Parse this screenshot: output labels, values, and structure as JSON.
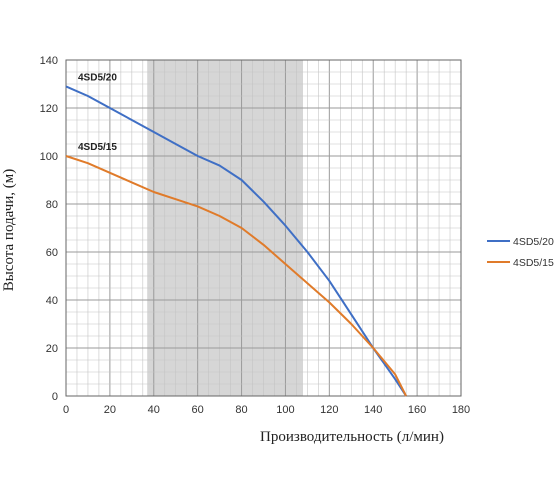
{
  "chart_data": {
    "type": "line",
    "xlabel": "Производительность (л/мин)",
    "ylabel": "Высота подачи, (м)",
    "xlim": [
      0,
      180
    ],
    "ylim": [
      0,
      140
    ],
    "x_ticks": [
      0,
      20,
      40,
      60,
      80,
      100,
      120,
      140,
      160,
      180
    ],
    "y_ticks": [
      0,
      20,
      40,
      60,
      80,
      100,
      120,
      140
    ],
    "grid": true,
    "shaded_region": [
      37,
      108
    ],
    "legend_position": "right",
    "series": [
      {
        "name": "4SD5/20",
        "color": "#3f6fc5",
        "label_on_curve": "4SD5/20",
        "x": [
          0,
          10,
          20,
          30,
          40,
          50,
          60,
          70,
          80,
          90,
          100,
          110,
          120,
          130,
          140,
          150,
          155
        ],
        "y": [
          129,
          125,
          120,
          115,
          110,
          105,
          100,
          96,
          90,
          81,
          71,
          60,
          48,
          34,
          20,
          7,
          0
        ]
      },
      {
        "name": "4SD5/15",
        "color": "#e07b2a",
        "label_on_curve": "4SD5/15",
        "x": [
          0,
          10,
          20,
          30,
          40,
          50,
          60,
          70,
          80,
          90,
          100,
          110,
          120,
          130,
          140,
          150,
          155
        ],
        "y": [
          100,
          97,
          93,
          89,
          85,
          82,
          79,
          75,
          70,
          63,
          55,
          47,
          39,
          30,
          20,
          9,
          0
        ]
      }
    ]
  }
}
